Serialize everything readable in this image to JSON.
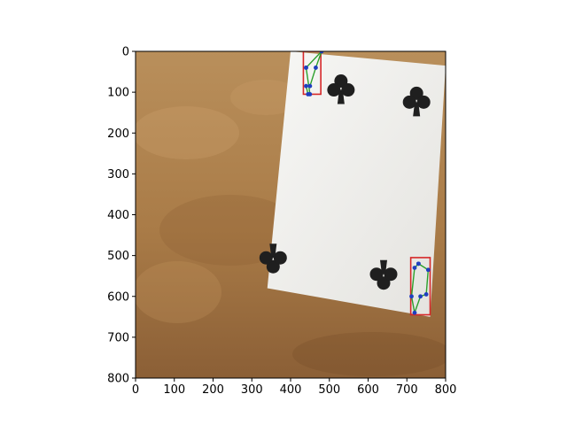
{
  "chart_data": {
    "type": "image",
    "title": "",
    "xlabel": "",
    "ylabel": "",
    "xlim": [
      0,
      800
    ],
    "ylim": [
      800,
      0
    ],
    "xticks": [
      0,
      100,
      200,
      300,
      400,
      500,
      600,
      700,
      800
    ],
    "yticks": [
      0,
      100,
      200,
      300,
      400,
      500,
      600,
      700,
      800
    ],
    "image_content": "Playing card (four of clubs) on a brown textured surface",
    "card_corners": [
      [
        400,
        0
      ],
      [
        800,
        35
      ],
      [
        760,
        650
      ],
      [
        340,
        580
      ]
    ],
    "suit_symbols": [
      [
        530,
        90
      ],
      [
        725,
        120
      ],
      [
        355,
        510
      ],
      [
        640,
        550
      ]
    ],
    "bounding_boxes": [
      {
        "label": "corner-index-top-left",
        "x_range": [
          433,
          478
        ],
        "y_range": [
          0,
          105
        ],
        "color": "#d62728"
      },
      {
        "label": "corner-index-bottom-right",
        "x_range": [
          710,
          760
        ],
        "y_range": [
          505,
          645
        ],
        "color": "#d62728"
      }
    ],
    "keypoint_polygons": [
      {
        "label": "top-left-index-outline",
        "points": [
          [
            440,
            40
          ],
          [
            480,
            0
          ],
          [
            465,
            40
          ],
          [
            450,
            85
          ],
          [
            440,
            85
          ],
          [
            445,
            105
          ],
          [
            450,
            105
          ],
          [
            440,
            40
          ]
        ],
        "line_color": "#2ca02c",
        "point_color": "#1f3fbf"
      },
      {
        "label": "bottom-right-index-outline",
        "points": [
          [
            730,
            520
          ],
          [
            755,
            535
          ],
          [
            750,
            595
          ],
          [
            735,
            600
          ],
          [
            720,
            640
          ],
          [
            712,
            600
          ],
          [
            720,
            530
          ],
          [
            730,
            520
          ]
        ],
        "line_color": "#2ca02c",
        "point_color": "#1f3fbf"
      }
    ],
    "colors": {
      "background_top": "#b88d5a",
      "background_bottom": "#8d6239",
      "card": "#f2f1ee",
      "club": "#1f1f1f",
      "box": "#d62728",
      "polyline": "#2ca02c",
      "points": "#1f3fbf"
    }
  }
}
